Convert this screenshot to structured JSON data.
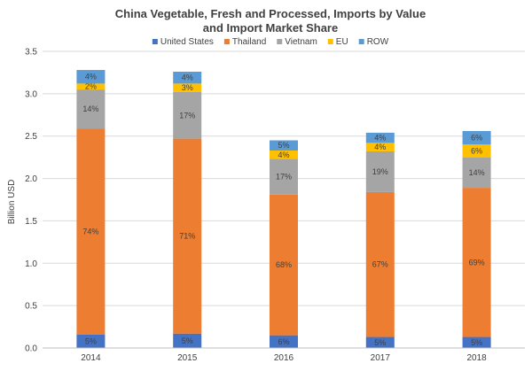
{
  "chart_data": {
    "type": "bar",
    "stacked": true,
    "title_lines": [
      "China Vegetable, Fresh and Processed, Imports by Value",
      "and Import Market Share"
    ],
    "ylabel": "Billion USD",
    "xlabel": "",
    "ylim": [
      0,
      3.5
    ],
    "yticks": [
      "0.0",
      "0.5",
      "1.0",
      "1.5",
      "2.0",
      "2.5",
      "3.0",
      "3.5"
    ],
    "ytick_values": [
      0,
      0.5,
      1.0,
      1.5,
      2.0,
      2.5,
      3.0,
      3.5
    ],
    "grid": true,
    "legend_position": "top",
    "categories": [
      "2014",
      "2015",
      "2016",
      "2017",
      "2018"
    ],
    "series": [
      {
        "name": "United States",
        "color": "#4472C4",
        "values": [
          0.16,
          0.17,
          0.15,
          0.13,
          0.13
        ],
        "labels": [
          "5%",
          "5%",
          "6%",
          "5%",
          "5%"
        ]
      },
      {
        "name": "Thailand",
        "color": "#ED7D31",
        "values": [
          2.43,
          2.3,
          1.66,
          1.71,
          1.76
        ],
        "labels": [
          "74%",
          "71%",
          "68%",
          "67%",
          "69%"
        ]
      },
      {
        "name": "Vietnam",
        "color": "#A5A5A5",
        "values": [
          0.46,
          0.55,
          0.42,
          0.48,
          0.36
        ],
        "labels": [
          "14%",
          "17%",
          "17%",
          "19%",
          "14%"
        ]
      },
      {
        "name": "EU",
        "color": "#FFC000",
        "values": [
          0.07,
          0.1,
          0.1,
          0.1,
          0.15
        ],
        "labels": [
          "2%",
          "3%",
          "4%",
          "4%",
          "6%"
        ]
      },
      {
        "name": "ROW",
        "color": "#5B9BD5",
        "values": [
          0.16,
          0.14,
          0.12,
          0.12,
          0.16
        ],
        "labels": [
          "4%",
          "4%",
          "5%",
          "4%",
          "6%"
        ]
      }
    ]
  }
}
